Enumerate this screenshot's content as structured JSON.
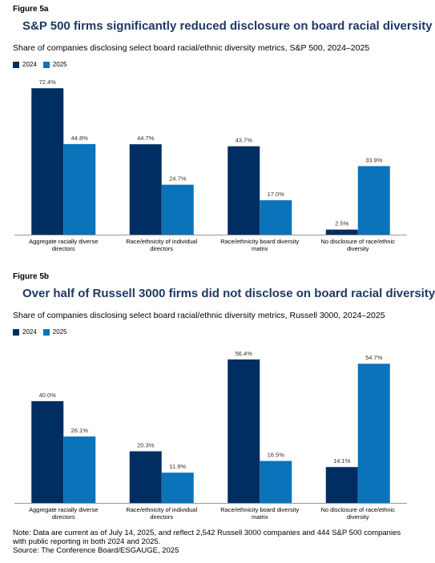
{
  "colors": {
    "s2024": "#002d62",
    "s2025": "#0a73b9",
    "title": "#1f3864"
  },
  "figures": [
    {
      "label": "Figure 5a",
      "title": "S&P 500 firms significantly reduced disclosure on board racial diversity",
      "subtitle": "Share of companies disclosing select board racial/ethnic diversity metrics, S&P 500, 2024–2025"
    },
    {
      "label": "Figure 5b",
      "title": "Over half of Russell 3000 firms did not disclose on board racial diversity",
      "subtitle": "Share of companies disclosing select board racial/ethnic diversity metrics, Russell 3000, 2024–2025"
    }
  ],
  "legend": {
    "s2024": "2024",
    "s2025": "2025"
  },
  "chart_data": [
    {
      "type": "bar",
      "categories": [
        [
          "Aggregate racially diverse",
          "directors"
        ],
        [
          "Race/ethnicity of individual",
          "directors"
        ],
        [
          "Race/ethnicity board diversity",
          "matrix"
        ],
        [
          "No disclosure of race/ethnic",
          "diversity"
        ]
      ],
      "series": [
        {
          "name": "2024",
          "values": [
            72.4,
            44.7,
            43.7,
            2.5
          ],
          "labels": [
            "72.4%",
            "44.7%",
            "43.7%",
            "2.5%"
          ]
        },
        {
          "name": "2025",
          "values": [
            44.8,
            24.7,
            17.0,
            33.9
          ],
          "labels": [
            "44.8%",
            "24.7%",
            "17.0%",
            "33.9%"
          ]
        }
      ],
      "ylim": [
        0,
        80
      ],
      "grid": false,
      "legend_position": "top-left"
    },
    {
      "type": "bar",
      "categories": [
        [
          "Aggregate racially diverse",
          "directors"
        ],
        [
          "Race/ethnicity of individual",
          "directors"
        ],
        [
          "Race/ethnicity board diversity",
          "matrix"
        ],
        [
          "No disclosure of race/ethnic",
          "diversity"
        ]
      ],
      "series": [
        {
          "name": "2024",
          "values": [
            40.0,
            20.3,
            56.4,
            14.1
          ],
          "labels": [
            "40.0%",
            "20.3%",
            "56.4%",
            "14.1%"
          ]
        },
        {
          "name": "2025",
          "values": [
            26.1,
            11.9,
            16.5,
            54.7
          ],
          "labels": [
            "26.1%",
            "11.9%",
            "16.5%",
            "54.7%"
          ]
        }
      ],
      "ylim": [
        0,
        62
      ],
      "grid": false,
      "legend_position": "top-left"
    }
  ],
  "note": {
    "line1": "Note: Data are current as of July 14, 2025, and reflect 2,542 Russell 3000 companies and 444 S&P 500 companies with public reporting in both 2024 and 2025.",
    "line2": "Source: The Conference Board/ESGAUGE, 2025"
  }
}
